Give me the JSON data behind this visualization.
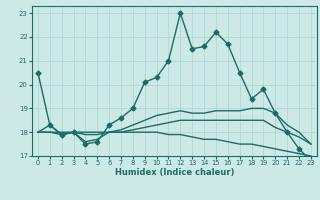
{
  "xlabel": "Humidex (Indice chaleur)",
  "ylabel": "",
  "background_color": "#cce9e5",
  "grid_color": "#b0d8d4",
  "line_color": "#1a6b6b",
  "xlim": [
    -0.5,
    23.5
  ],
  "ylim": [
    17,
    23.3
  ],
  "yticks": [
    17,
    18,
    19,
    20,
    21,
    22,
    23
  ],
  "xticks": [
    0,
    1,
    2,
    3,
    4,
    5,
    6,
    7,
    8,
    9,
    10,
    11,
    12,
    13,
    14,
    15,
    16,
    17,
    18,
    19,
    20,
    21,
    22,
    23
  ],
  "lines": [
    {
      "x": [
        0,
        1,
        2,
        3,
        4,
        5,
        6,
        7,
        8,
        9,
        10,
        11,
        12,
        13,
        14,
        15,
        16,
        17,
        18,
        19,
        20,
        21,
        22,
        23
      ],
      "y": [
        20.5,
        18.3,
        17.9,
        18.0,
        17.5,
        17.6,
        18.3,
        18.6,
        19.0,
        20.1,
        20.3,
        21.0,
        23.0,
        21.5,
        21.6,
        22.2,
        21.7,
        20.5,
        19.4,
        19.8,
        18.8,
        18.0,
        17.3,
        16.8
      ],
      "marker": "D",
      "markersize": 2.5,
      "linewidth": 1.0
    },
    {
      "x": [
        0,
        1,
        2,
        3,
        4,
        5,
        6,
        7,
        8,
        9,
        10,
        11,
        12,
        13,
        14,
        15,
        16,
        17,
        18,
        19,
        20,
        21,
        22,
        23
      ],
      "y": [
        18.0,
        18.3,
        17.9,
        18.0,
        17.6,
        17.7,
        18.0,
        18.1,
        18.3,
        18.5,
        18.7,
        18.8,
        18.9,
        18.8,
        18.8,
        18.9,
        18.9,
        18.9,
        19.0,
        19.0,
        18.8,
        18.3,
        18.0,
        17.5
      ],
      "marker": null,
      "markersize": 0,
      "linewidth": 1.0
    },
    {
      "x": [
        0,
        1,
        2,
        3,
        4,
        5,
        6,
        7,
        8,
        9,
        10,
        11,
        12,
        13,
        14,
        15,
        16,
        17,
        18,
        19,
        20,
        21,
        22,
        23
      ],
      "y": [
        18.0,
        18.0,
        18.0,
        18.0,
        18.0,
        18.0,
        18.0,
        18.0,
        18.1,
        18.2,
        18.3,
        18.4,
        18.5,
        18.5,
        18.5,
        18.5,
        18.5,
        18.5,
        18.5,
        18.5,
        18.2,
        18.0,
        17.8,
        17.5
      ],
      "marker": null,
      "markersize": 0,
      "linewidth": 1.0
    },
    {
      "x": [
        0,
        1,
        2,
        3,
        4,
        5,
        6,
        7,
        8,
        9,
        10,
        11,
        12,
        13,
        14,
        15,
        16,
        17,
        18,
        19,
        20,
        21,
        22,
        23
      ],
      "y": [
        18.0,
        18.0,
        17.9,
        18.0,
        17.9,
        17.9,
        18.0,
        18.0,
        18.0,
        18.0,
        18.0,
        17.9,
        17.9,
        17.8,
        17.7,
        17.7,
        17.6,
        17.5,
        17.5,
        17.4,
        17.3,
        17.2,
        17.1,
        17.0
      ],
      "marker": null,
      "markersize": 0,
      "linewidth": 1.0
    }
  ]
}
